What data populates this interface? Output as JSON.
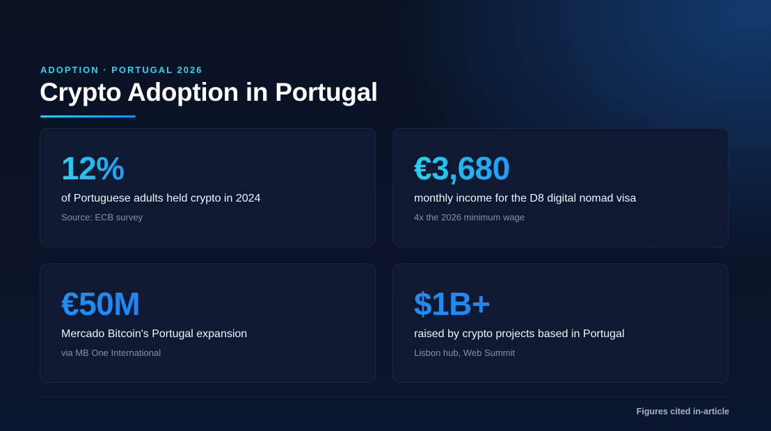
{
  "header": {
    "eyebrow": "ADOPTION · PORTUGAL 2026",
    "title": "Crypto Adoption in Portugal"
  },
  "cards": [
    {
      "stat": "12%",
      "description": "of Portuguese adults held crypto in 2024",
      "note": "Source: ECB survey"
    },
    {
      "stat": "€3,680",
      "description": "monthly income for the D8 digital nomad visa",
      "note": "4x the 2026 minimum wage"
    },
    {
      "stat": "€50M",
      "description": "Mercado Bitcoin's Portugal expansion",
      "note": "via MB One International"
    },
    {
      "stat": "$1B+",
      "description": "raised by crypto projects based in Portugal",
      "note": "Lisbon hub, Web Summit"
    }
  ],
  "footer": {
    "note": "Figures cited in-article"
  }
}
